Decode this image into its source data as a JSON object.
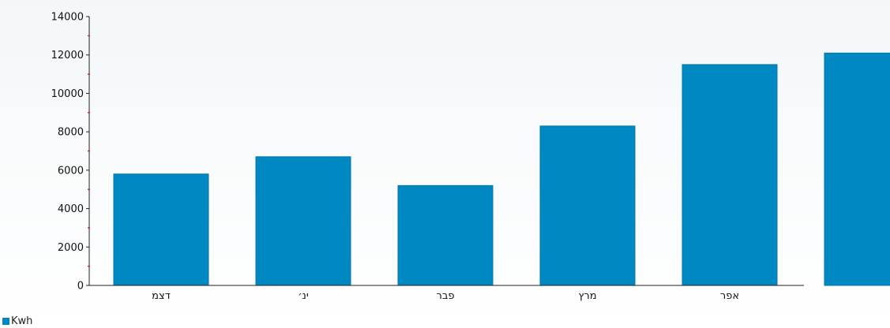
{
  "chart_data": {
    "type": "bar",
    "categories": [
      "דצמ",
      "ינ׳",
      "פבר",
      "מרץ",
      "אפר",
      ""
    ],
    "series": [
      {
        "name": "Kwh",
        "values": [
          5800,
          6700,
          5200,
          8300,
          11500,
          12100
        ]
      }
    ],
    "ylim": [
      0,
      14000
    ],
    "yticks": [
      0,
      2000,
      4000,
      6000,
      8000,
      10000,
      12000,
      14000
    ],
    "ytick_labels": [
      "0",
      "2000",
      "4000",
      "6000",
      "8000",
      "10000",
      "12000",
      "14000"
    ],
    "grid": false,
    "legend_position": "bottom-left"
  },
  "colors": {
    "bar": "#0088c2",
    "bar_edge": "#0077aa",
    "axis": "#222222",
    "minor_tick": "#cc2a2a"
  }
}
